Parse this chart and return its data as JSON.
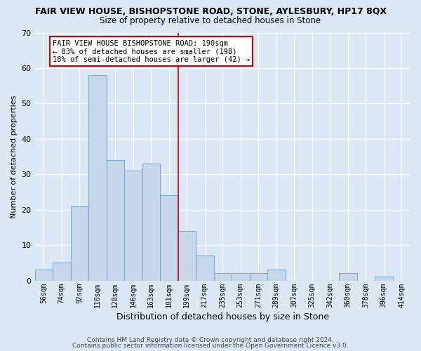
{
  "title": "FAIR VIEW HOUSE, BISHOPSTONE ROAD, STONE, AYLESBURY, HP17 8QX",
  "subtitle": "Size of property relative to detached houses in Stone",
  "xlabel": "Distribution of detached houses by size in Stone",
  "ylabel": "Number of detached properties",
  "bar_color": "#c8d8ec",
  "bar_edge_color": "#7aaace",
  "background_color": "#dce8f5",
  "grid_color": "#ffffff",
  "categories": [
    "56sqm",
    "74sqm",
    "92sqm",
    "110sqm",
    "128sqm",
    "146sqm",
    "163sqm",
    "181sqm",
    "199sqm",
    "217sqm",
    "235sqm",
    "253sqm",
    "271sqm",
    "289sqm",
    "307sqm",
    "325sqm",
    "342sqm",
    "360sqm",
    "378sqm",
    "396sqm",
    "414sqm"
  ],
  "values": [
    3,
    5,
    21,
    58,
    34,
    31,
    33,
    24,
    14,
    7,
    2,
    2,
    2,
    3,
    0,
    0,
    0,
    2,
    0,
    1,
    0
  ],
  "ylim": [
    0,
    70
  ],
  "yticks": [
    0,
    10,
    20,
    30,
    40,
    50,
    60,
    70
  ],
  "vline_x": 8.0,
  "vline_color": "#cc0000",
  "annotation_text": "FAIR VIEW HOUSE BISHOPSTONE ROAD: 190sqm\n← 83% of detached houses are smaller (198)\n18% of semi-detached houses are larger (42) →",
  "annotation_box_color": "#ffffff",
  "annotation_box_edgecolor": "#cc0000",
  "footer1": "Contains HM Land Registry data © Crown copyright and database right 2024.",
  "footer2": "Contains public sector information licensed under the Open Government Licence v3.0."
}
